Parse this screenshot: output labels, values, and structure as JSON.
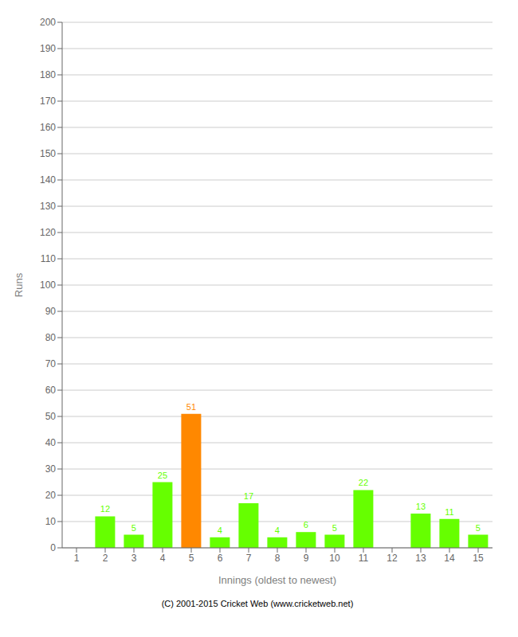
{
  "chart_data": {
    "type": "bar",
    "categories": [
      "1",
      "2",
      "3",
      "4",
      "5",
      "6",
      "7",
      "8",
      "9",
      "10",
      "11",
      "12",
      "13",
      "14",
      "15"
    ],
    "values": [
      0,
      12,
      5,
      25,
      51,
      4,
      17,
      4,
      6,
      5,
      22,
      0,
      13,
      11,
      5
    ],
    "colors": [
      "#66ff00",
      "#66ff00",
      "#66ff00",
      "#66ff00",
      "#ff8800",
      "#66ff00",
      "#66ff00",
      "#66ff00",
      "#66ff00",
      "#66ff00",
      "#66ff00",
      "#66ff00",
      "#66ff00",
      "#66ff00",
      "#66ff00"
    ],
    "xlabel": "Innings (oldest to newest)",
    "ylabel": "Runs",
    "ylim": [
      0,
      200
    ],
    "yticks": [
      0,
      10,
      20,
      30,
      40,
      50,
      60,
      70,
      80,
      90,
      100,
      110,
      120,
      130,
      140,
      150,
      160,
      170,
      180,
      190,
      200
    ],
    "grid": true,
    "data_labels": true,
    "annotations": [
      "(C) 2001-2015 Cricket Web (www.cricketweb.net)"
    ]
  }
}
